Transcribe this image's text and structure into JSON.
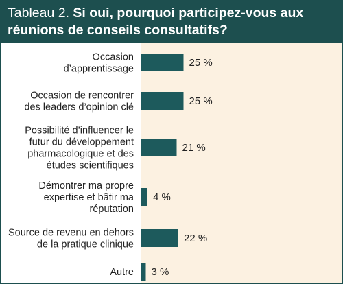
{
  "title": {
    "label": "Tableau 2.",
    "question": "Si oui, pourquoi participez-vous aux réunions de conseils consultatifs?"
  },
  "colors": {
    "header": "#1d4f4f",
    "panel": "#fcf1e1",
    "bar": "#1d5a5c"
  },
  "chart_data": {
    "type": "bar",
    "orientation": "horizontal",
    "title": "Si oui, pourquoi participez-vous aux réunions de conseils consultatifs?",
    "categories": [
      [
        "Occasion",
        "d’apprentissage"
      ],
      [
        "Occasion de rencontrer",
        "des leaders d’opinion clé"
      ],
      [
        "Possibilité d’influencer le",
        "futur du développement",
        "pharmacologique et des",
        "études scientifiques"
      ],
      [
        "Démontrer ma propre",
        "expertise et bâtir ma",
        "réputation"
      ],
      [
        "Source de revenu en dehors",
        "de la pratique clinique"
      ],
      [
        "Autre"
      ]
    ],
    "values": [
      25,
      25,
      21,
      4,
      22,
      3
    ],
    "value_labels": [
      "25 %",
      "25 %",
      "21 %",
      "4 %",
      "22 %",
      "3 %"
    ],
    "unit": "%",
    "xlim": [
      0,
      100
    ]
  }
}
